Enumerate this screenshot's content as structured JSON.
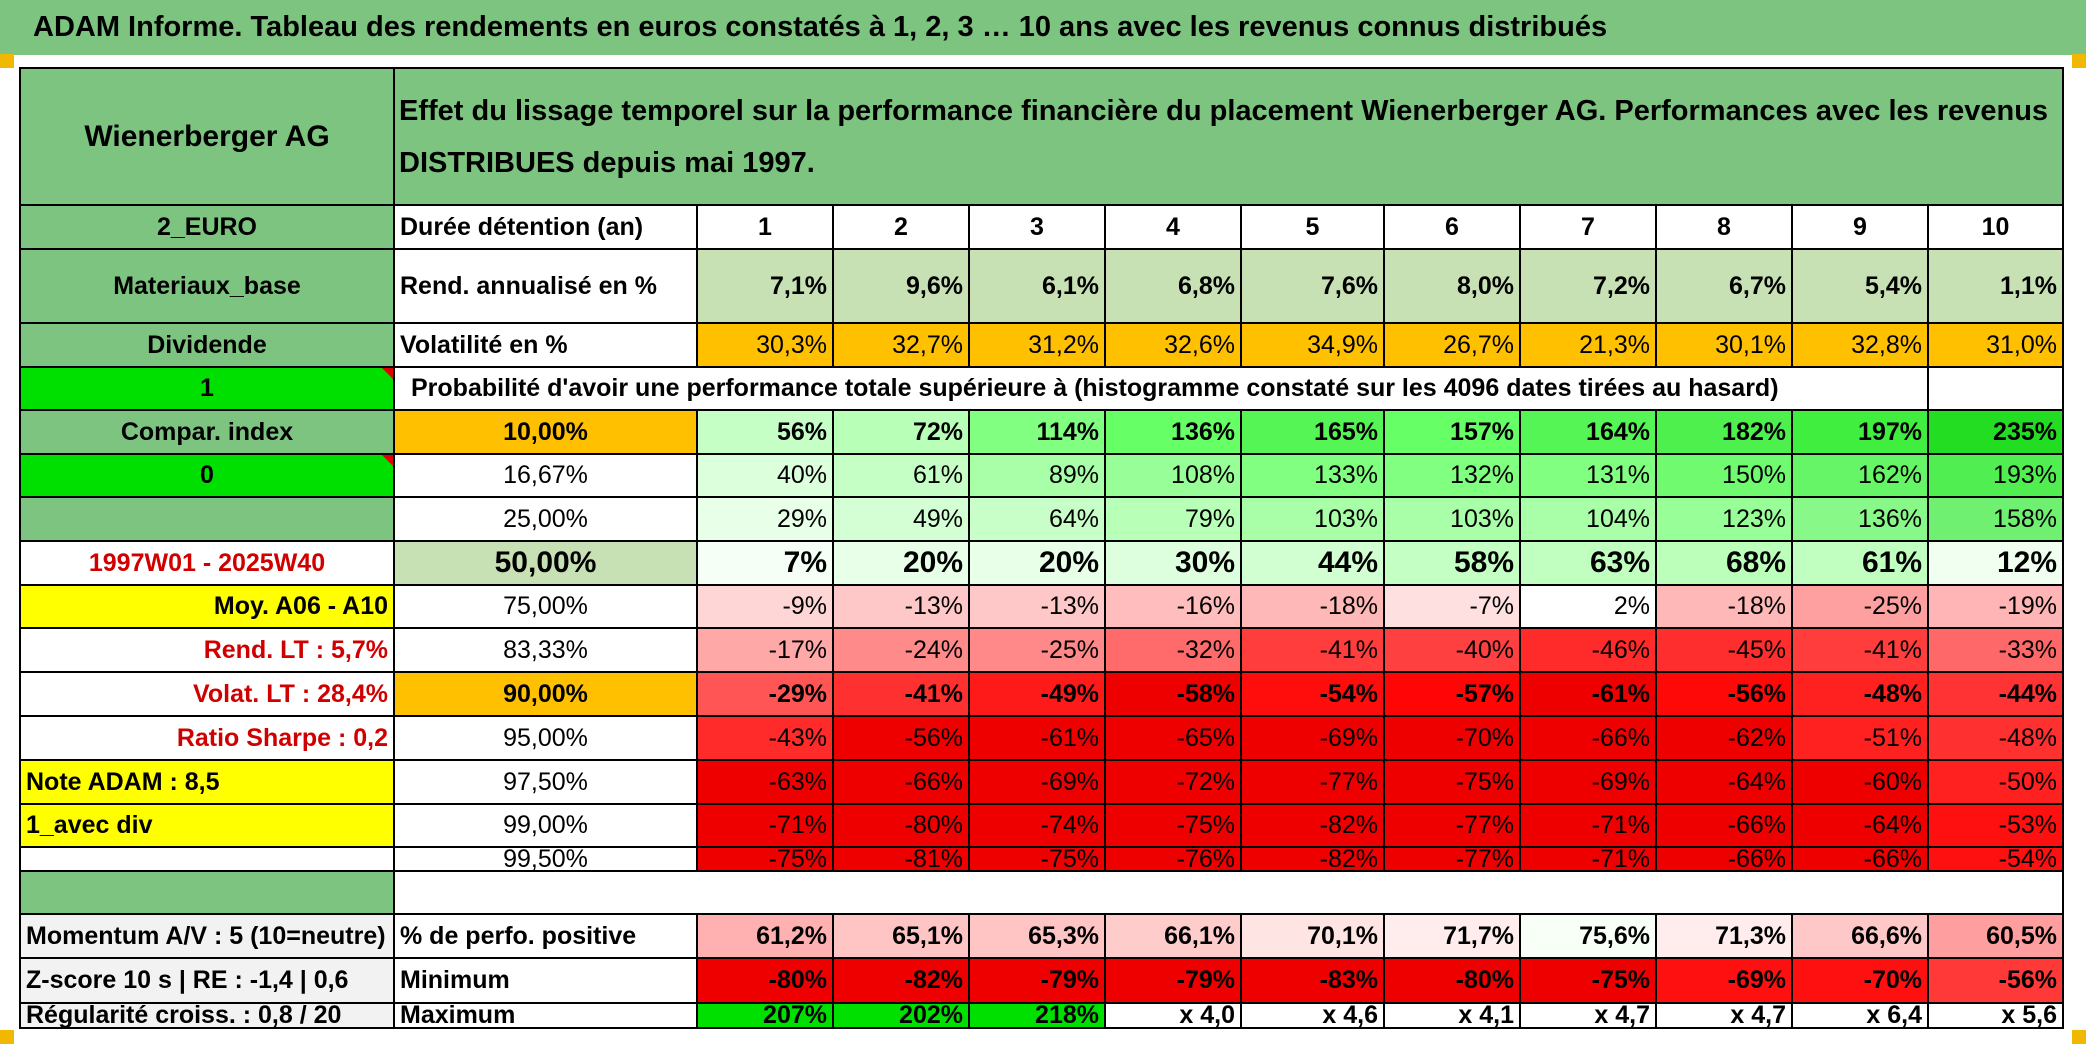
{
  "header": {
    "title": "ADAM Informe. Tableau des rendements en euros constatés à 1, 2, 3 … 10 ans avec les revenus connus distribués"
  },
  "left": {
    "name": "Wienerberger AG",
    "currency": "2_EURO",
    "sector": "Materiaux_base",
    "dividend": "Dividende",
    "flag1": "1",
    "compar": "Compar. index",
    "flag0": "0",
    "period": "1997W01 - 2025W40",
    "moy": "Moy. A06 - A10",
    "rend_lt": "Rend. LT :   5,7%",
    "volat_lt": "Volat. LT :   28,4%",
    "sharpe": "Ratio Sharpe :    0,2",
    "note": "Note ADAM : 8,5",
    "avec_div": "1_avec div",
    "momentum": "Momentum A/V : 5 (10=neutre)",
    "zscore": "Z-score 10 s | RE : -1,4 | 0,6",
    "regul": "Régularité croiss. : 0,8 / 20"
  },
  "desc": "Effet du lissage temporel sur la performance financière du placement Wienerberger AG. Performances avec les revenus DISTRIBUES depuis mai 1997.",
  "labels": {
    "duree": "Durée détention (an)",
    "rend": "Rend. annualisé en %",
    "volat": "Volatilité en %",
    "proba": "Probabilité d'avoir une performance totale supérieure à (histogramme constaté sur les 4096 dates tirées au hasard)",
    "pos": "% de perfo. positive",
    "min": "Minimum",
    "max": "Maximum"
  },
  "years": [
    "1",
    "2",
    "3",
    "4",
    "5",
    "6",
    "7",
    "8",
    "9",
    "10"
  ],
  "rend": [
    "7,1%",
    "9,6%",
    "6,1%",
    "6,8%",
    "7,6%",
    "8,0%",
    "7,2%",
    "6,7%",
    "5,4%",
    "1,1%"
  ],
  "volat": [
    "30,3%",
    "32,7%",
    "31,2%",
    "32,6%",
    "34,9%",
    "26,7%",
    "21,3%",
    "30,1%",
    "32,8%",
    "31,0%"
  ],
  "quantiles": [
    {
      "q": "10,00%",
      "v": [
        "56%",
        "72%",
        "114%",
        "136%",
        "165%",
        "157%",
        "164%",
        "182%",
        "197%",
        "235%"
      ]
    },
    {
      "q": "16,67%",
      "v": [
        "40%",
        "61%",
        "89%",
        "108%",
        "133%",
        "132%",
        "131%",
        "150%",
        "162%",
        "193%"
      ]
    },
    {
      "q": "25,00%",
      "v": [
        "29%",
        "49%",
        "64%",
        "79%",
        "103%",
        "103%",
        "104%",
        "123%",
        "136%",
        "158%"
      ]
    },
    {
      "q": "50,00%",
      "v": [
        "7%",
        "20%",
        "20%",
        "30%",
        "44%",
        "58%",
        "63%",
        "68%",
        "61%",
        "12%"
      ]
    },
    {
      "q": "75,00%",
      "v": [
        "-9%",
        "-13%",
        "-13%",
        "-16%",
        "-18%",
        "-7%",
        "2%",
        "-18%",
        "-25%",
        "-19%"
      ]
    },
    {
      "q": "83,33%",
      "v": [
        "-17%",
        "-24%",
        "-25%",
        "-32%",
        "-41%",
        "-40%",
        "-46%",
        "-45%",
        "-41%",
        "-33%"
      ]
    },
    {
      "q": "90,00%",
      "v": [
        "-29%",
        "-41%",
        "-49%",
        "-58%",
        "-54%",
        "-57%",
        "-61%",
        "-56%",
        "-48%",
        "-44%"
      ]
    },
    {
      "q": "95,00%",
      "v": [
        "-43%",
        "-56%",
        "-61%",
        "-65%",
        "-69%",
        "-70%",
        "-66%",
        "-62%",
        "-51%",
        "-48%"
      ]
    },
    {
      "q": "97,50%",
      "v": [
        "-63%",
        "-66%",
        "-69%",
        "-72%",
        "-77%",
        "-75%",
        "-69%",
        "-64%",
        "-60%",
        "-50%"
      ]
    },
    {
      "q": "99,00%",
      "v": [
        "-71%",
        "-80%",
        "-74%",
        "-75%",
        "-82%",
        "-77%",
        "-71%",
        "-66%",
        "-64%",
        "-53%"
      ]
    },
    {
      "q": "99,50%",
      "v": [
        "-75%",
        "-81%",
        "-75%",
        "-76%",
        "-82%",
        "-77%",
        "-71%",
        "-66%",
        "-66%",
        "-54%"
      ]
    }
  ],
  "pos": [
    "61,2%",
    "65,1%",
    "65,3%",
    "66,1%",
    "70,1%",
    "71,7%",
    "75,6%",
    "71,3%",
    "66,6%",
    "60,5%"
  ],
  "min": [
    "-80%",
    "-82%",
    "-79%",
    "-79%",
    "-83%",
    "-80%",
    "-75%",
    "-69%",
    "-70%",
    "-56%"
  ],
  "max": [
    "207%",
    "202%",
    "218%",
    "x 4,0",
    "x 4,6",
    "x 4,1",
    "x 4,7",
    "x 4,7",
    "x 6,4",
    "x 5,6"
  ],
  "colors": {
    "header_green": "#7cc47f",
    "rend_green": "#c7e1b4",
    "volat_orange": "#ffc000",
    "bright_green": "#00e000",
    "yellow": "#ffff00",
    "light_gray": "#f2f2f2",
    "dark_red": "#ee0000"
  },
  "quantile_colors": [
    [
      "#c6ffc6",
      "#b8ffb8",
      "#80ff80",
      "#66ff66",
      "#55f555",
      "#66ff66",
      "#55f555",
      "#4df04d",
      "#40ee40",
      "#22dd22"
    ],
    [
      "#dcffdc",
      "#c6ffc6",
      "#a8ffa8",
      "#98ff98",
      "#80ff80",
      "#80ff80",
      "#80ff80",
      "#70fa70",
      "#66f566",
      "#50ee50"
    ],
    [
      "#e8ffe8",
      "#d4ffd4",
      "#c8ffc8",
      "#b8ffb8",
      "#a8ffa8",
      "#a8ffa8",
      "#a8ffa8",
      "#98ff98",
      "#88f888",
      "#70f070"
    ],
    [
      "#f5fff5",
      "#e8ffe8",
      "#e8ffe8",
      "#ddffdd",
      "#d2ffd2",
      "#c4ffc4",
      "#c0ffc0",
      "#bbffbb",
      "#c0ffc0",
      "#f0fff0"
    ],
    [
      "#ffd6d6",
      "#ffc8c8",
      "#ffc8c8",
      "#ffbdbd",
      "#ffb8b8",
      "#ffe0e0",
      "#ffffff",
      "#ffb8b8",
      "#ffa0a0",
      "#ffb5b5"
    ],
    [
      "#ffa8a8",
      "#ff8a8a",
      "#ff8888",
      "#ff6a6a",
      "#ff3d3d",
      "#ff4040",
      "#ff2a2a",
      "#ff2e2e",
      "#ff3d3d",
      "#ff6868"
    ],
    [
      "#ff5555",
      "#ff3030",
      "#ff1a1a",
      "#ee0000",
      "#ff0c0c",
      "#ff0505",
      "#ee0000",
      "#ff0808",
      "#ff2020",
      "#ff3333"
    ],
    [
      "#ff2a2a",
      "#ee0000",
      "#ee0000",
      "#ee0000",
      "#ee0000",
      "#ee0000",
      "#ee0000",
      "#ee0000",
      "#ff2020",
      "#ff3030"
    ],
    [
      "#ee0000",
      "#ee0000",
      "#ee0000",
      "#ee0000",
      "#ee0000",
      "#ee0000",
      "#ee0000",
      "#ee0000",
      "#ee0000",
      "#ff2020"
    ],
    [
      "#ee0000",
      "#ee0000",
      "#ee0000",
      "#ee0000",
      "#ee0000",
      "#ee0000",
      "#ee0000",
      "#ee0000",
      "#ee0000",
      "#ff1010"
    ],
    [
      "#ee0000",
      "#ee0000",
      "#ee0000",
      "#ee0000",
      "#ee0000",
      "#ee0000",
      "#ee0000",
      "#ee0000",
      "#ee0000",
      "#ff1010"
    ]
  ],
  "pos_colors": [
    "#ffb0b0",
    "#ffc4c4",
    "#ffc4c4",
    "#ffcccc",
    "#ffe4e4",
    "#ffeded",
    "#f7fff7",
    "#ffeded",
    "#ffc8c8",
    "#ff9e9e"
  ],
  "min_colors": [
    "#ee0000",
    "#ee0000",
    "#ee0000",
    "#ee0000",
    "#ee0000",
    "#ee0000",
    "#ee0000",
    "#ff1010",
    "#ff1010",
    "#ff3838"
  ]
}
